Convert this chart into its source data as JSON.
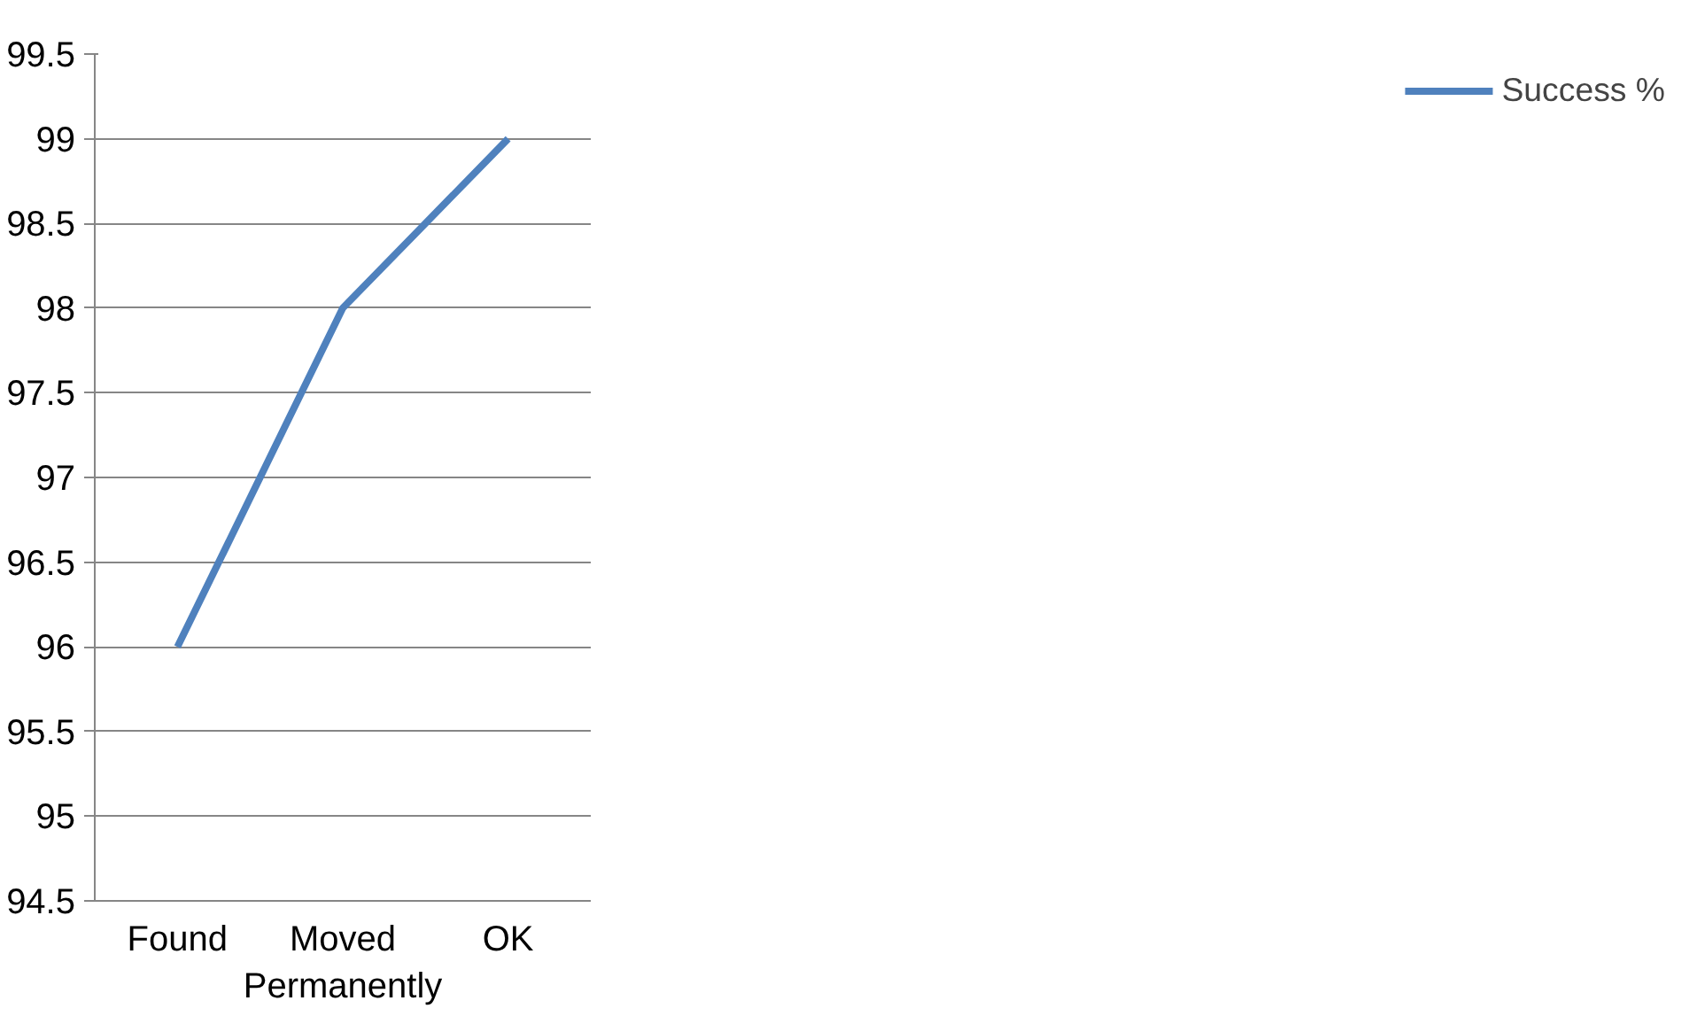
{
  "chart_data": {
    "type": "line",
    "categories": [
      "Found",
      "Moved Permanently",
      "OK"
    ],
    "series": [
      {
        "name": "Success %",
        "color": "#4f81bd",
        "values": [
          96,
          98,
          99
        ]
      }
    ],
    "ylim": [
      94.5,
      99.5
    ],
    "yticks": [
      94.5,
      95,
      95.5,
      96,
      96.5,
      97,
      97.5,
      98,
      98.5,
      99,
      99.5
    ],
    "grid": "y",
    "legend": "right",
    "marker": "none",
    "line_style": "solid"
  }
}
